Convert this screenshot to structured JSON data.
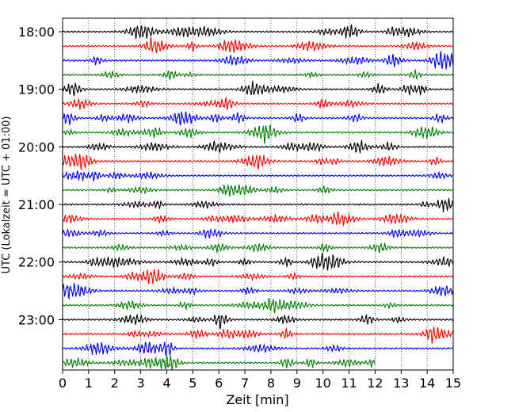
{
  "chart_data": {
    "type": "line",
    "title": "",
    "xlabel": "Zeit  [min]",
    "ylabel": "UTC (Lokalzeit = UTC + 01:00)",
    "xlim": [
      0,
      15
    ],
    "x_ticks": [
      "0",
      "1",
      "2",
      "3",
      "4",
      "5",
      "6",
      "7",
      "8",
      "9",
      "10",
      "11",
      "12",
      "13",
      "14",
      "15"
    ],
    "y_tick_labels": [
      "18:00",
      "19:00",
      "20:00",
      "21:00",
      "22:00",
      "23:00"
    ],
    "rows_per_hour": 4,
    "trace_colors": [
      "#000000",
      "#ff0000",
      "#0000ff",
      "#007f00"
    ],
    "trace_start_times": [
      "18:00",
      "18:15",
      "18:30",
      "18:45",
      "19:00",
      "19:15",
      "19:30",
      "19:45",
      "20:00",
      "20:15",
      "20:30",
      "20:45",
      "21:00",
      "21:15",
      "21:30",
      "21:45",
      "22:00",
      "22:15",
      "22:30",
      "22:45",
      "23:00",
      "23:15",
      "23:30",
      "23:45"
    ],
    "last_trace_end_min": 12,
    "grid": true,
    "grid_axis": "x"
  }
}
